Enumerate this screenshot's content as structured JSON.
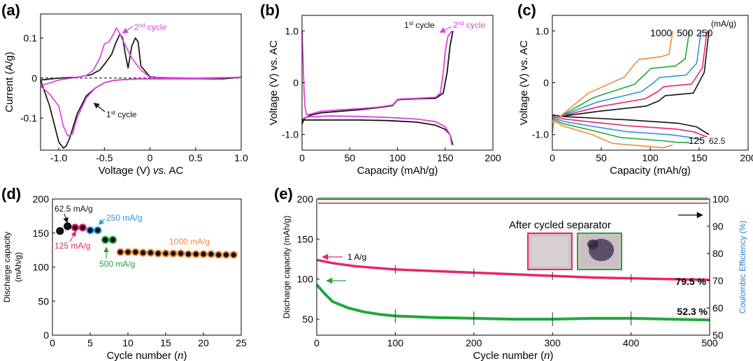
{
  "colors": {
    "black": "#111111",
    "magenta": "#e040e0",
    "pink": "#e8246e",
    "green": "#22a63a",
    "blue": "#2a95e0",
    "orange": "#f08a3c",
    "red": "#d81c3c",
    "cyan": "#2a7fd0"
  },
  "chart_data": [
    {
      "panel": "(a)",
      "type": "line",
      "xlabel_parts": [
        "Voltage (V) ",
        "vs.",
        " AC"
      ],
      "ylabel": "Current (A/g)",
      "xlim": [
        -1.2,
        1.0
      ],
      "ylim": [
        -0.18,
        0.16
      ],
      "xticks": [
        -1.0,
        -0.5,
        0,
        0.5,
        1.0
      ],
      "xtick_labels": [
        "-1.0",
        "-0.5",
        "0",
        "0.5",
        "1.0"
      ],
      "yticks": [
        -0.1,
        0,
        0.1
      ],
      "ytick_labels": [
        "-0.1",
        "0",
        "0.1"
      ],
      "series": [
        {
          "name": "1st cycle",
          "color": "#111111",
          "x": [
            -1.2,
            -1.1,
            -1.0,
            -0.95,
            -0.92,
            -0.88,
            -0.8,
            -0.7,
            -0.6,
            -0.5,
            -0.4,
            -0.3,
            -0.2,
            -0.1,
            0,
            0.2,
            0.4,
            0.6,
            0.8,
            1.0,
            0.8,
            0.6,
            0.4,
            0.2,
            0,
            -0.1,
            -0.13,
            -0.16,
            -0.2,
            -0.24,
            -0.27,
            -0.3,
            -0.33,
            -0.35,
            -0.38,
            -0.42,
            -0.48,
            -0.55,
            -0.65,
            -0.8,
            -1.0,
            -1.2
          ],
          "y": [
            -0.005,
            -0.07,
            -0.16,
            -0.175,
            -0.17,
            -0.15,
            -0.09,
            -0.045,
            -0.025,
            -0.012,
            -0.006,
            -0.004,
            -0.003,
            -0.002,
            -0.002,
            -0.002,
            -0.002,
            -0.002,
            -0.002,
            0.002,
            0.0,
            0.0,
            0.0,
            0.0,
            0.003,
            0.03,
            0.09,
            0.1,
            0.08,
            0.025,
            0.06,
            0.1,
            0.11,
            0.1,
            0.085,
            0.06,
            0.04,
            0.02,
            0.008,
            0.002,
            0.0,
            -0.005
          ]
        },
        {
          "name": "2nd cycle",
          "color": "#e040e0",
          "x": [
            -1.2,
            -1.1,
            -1.0,
            -0.95,
            -0.9,
            -0.85,
            -0.8,
            -0.7,
            -0.6,
            -0.5,
            -0.4,
            -0.3,
            -0.2,
            -0.1,
            0,
            0.5,
            1.0,
            0.5,
            0,
            -0.1,
            -0.2,
            -0.3,
            -0.34,
            -0.37,
            -0.4,
            -0.45,
            -0.5,
            -0.55,
            -0.62,
            -0.7,
            -0.8,
            -1.0,
            -1.2
          ],
          "y": [
            -0.02,
            -0.04,
            -0.07,
            -0.12,
            -0.145,
            -0.14,
            -0.1,
            -0.05,
            -0.025,
            -0.012,
            -0.006,
            -0.004,
            -0.003,
            -0.002,
            -0.002,
            -0.002,
            0.002,
            0.0,
            0.002,
            0.02,
            0.05,
            0.095,
            0.115,
            0.125,
            0.11,
            0.09,
            0.085,
            0.05,
            0.02,
            0.006,
            0.002,
            -0.005,
            -0.02
          ]
        }
      ],
      "annotations": [
        {
          "text": "2",
          "sup": "nd",
          "rest": " cycle",
          "color": "#e040e0"
        },
        {
          "text": "1",
          "sup": "st",
          "rest": " cycle",
          "color": "#111111"
        }
      ]
    },
    {
      "panel": "(b)",
      "type": "line",
      "xlabel": "Capacity (mAh/g)",
      "ylabel": "Voltage (V) vs. AC",
      "xlim": [
        0,
        200
      ],
      "ylim": [
        -1.3,
        1.3
      ],
      "xticks": [
        0,
        50,
        100,
        150,
        200
      ],
      "xtick_labels": [
        "0",
        "50",
        "100",
        "150",
        "200"
      ],
      "yticks": [
        -1.0,
        0,
        1.0
      ],
      "ytick_labels": [
        "-1.0",
        "0",
        "1.0"
      ],
      "series": [
        {
          "name": "1st cycle charge",
          "color": "#111111",
          "x": [
            0,
            2,
            5,
            10,
            20,
            40,
            60,
            80,
            95,
            100,
            105,
            120,
            140,
            148,
            152,
            155,
            158
          ],
          "y": [
            -0.8,
            -0.7,
            -0.66,
            -0.62,
            -0.58,
            -0.55,
            -0.52,
            -0.48,
            -0.44,
            -0.33,
            -0.32,
            -0.31,
            -0.3,
            -0.2,
            0.2,
            0.7,
            1.0
          ]
        },
        {
          "name": "1st cycle discharge",
          "color": "#111111",
          "x": [
            0,
            10,
            30,
            60,
            90,
            120,
            140,
            150,
            155,
            158
          ],
          "y": [
            -0.72,
            -0.72,
            -0.72,
            -0.72,
            -0.73,
            -0.76,
            -0.82,
            -0.9,
            -1.0,
            -1.2
          ]
        },
        {
          "name": "2nd cycle charge",
          "color": "#e040e0",
          "x": [
            0,
            1,
            2,
            3,
            5,
            10,
            20,
            40,
            60,
            80,
            95,
            100,
            105,
            120,
            140,
            145,
            148,
            150,
            153,
            157
          ],
          "y": [
            1.0,
            0.5,
            -0.1,
            -0.45,
            -0.62,
            -0.6,
            -0.55,
            -0.52,
            -0.5,
            -0.47,
            -0.43,
            -0.32,
            -0.31,
            -0.3,
            -0.28,
            -0.2,
            0.2,
            0.6,
            0.9,
            1.0
          ]
        },
        {
          "name": "2nd cycle discharge",
          "color": "#e040e0",
          "x": [
            0,
            5,
            15,
            30,
            60,
            90,
            120,
            140,
            150,
            155,
            157
          ],
          "y": [
            -0.7,
            -0.66,
            -0.65,
            -0.64,
            -0.65,
            -0.67,
            -0.7,
            -0.75,
            -0.85,
            -1.0,
            -1.2
          ]
        }
      ],
      "annotations": [
        {
          "text": "1",
          "sup": "st",
          "rest": " cycle",
          "color": "#111111"
        },
        {
          "text": "2",
          "sup": "nd",
          "rest": " cycle",
          "color": "#e040e0"
        }
      ]
    },
    {
      "panel": "(c)",
      "type": "line",
      "xlabel": "Capacity (mAh/g)",
      "ylabel": "Voltage (V) vs. AC",
      "xlim": [
        0,
        200
      ],
      "ylim": [
        -1.3,
        1.3
      ],
      "xticks": [
        0,
        50,
        100,
        150,
        200
      ],
      "xtick_labels": [
        "0",
        "50",
        "100",
        "150",
        "200"
      ],
      "yticks": [
        -1.0,
        0,
        1.0
      ],
      "ytick_labels": [
        "-1.0",
        "0",
        "1.0"
      ],
      "unit_label": "(mA/g)",
      "series": [
        {
          "name": "62.5",
          "color": "#111111",
          "cap": 160
        },
        {
          "name": "125",
          "color": "#e8246e",
          "cap": 158
        },
        {
          "name": "250",
          "color": "#2a95e0",
          "cap": 152
        },
        {
          "name": "500",
          "color": "#22a63a",
          "cap": 140
        },
        {
          "name": "1000",
          "color": "#f08a3c",
          "cap": 123
        }
      ]
    },
    {
      "panel": "(d)",
      "type": "scatter",
      "xlabel_parts": [
        "Cycle number (",
        "n",
        ")"
      ],
      "ylabel_lines": [
        "Discharge capacity",
        "(mAh/g)"
      ],
      "xlim": [
        0,
        25
      ],
      "ylim": [
        0,
        200
      ],
      "xticks": [
        0,
        5,
        10,
        15,
        20,
        25
      ],
      "xtick_labels": [
        "0",
        "5",
        "10",
        "15",
        "20",
        "25"
      ],
      "yticks": [
        0,
        50,
        100,
        150,
        200
      ],
      "ytick_labels": [
        "0",
        "50",
        "100",
        "150",
        "200"
      ],
      "series": [
        {
          "name": "62.5 mA/g",
          "color": "#111111",
          "x": [
            1,
            2
          ],
          "y": [
            153,
            160
          ]
        },
        {
          "name": "125 mA/g",
          "color": "#e8246e",
          "x": [
            3,
            4
          ],
          "y": [
            158,
            158
          ]
        },
        {
          "name": "250 mA/g",
          "color": "#2a95e0",
          "x": [
            5,
            6
          ],
          "y": [
            154,
            154
          ]
        },
        {
          "name": "500 mA/g",
          "color": "#22a63a",
          "x": [
            7,
            8
          ],
          "y": [
            140,
            140
          ]
        },
        {
          "name": "1000 mA/g",
          "color": "#f08a3c",
          "x": [
            9,
            10,
            11,
            12,
            13,
            14,
            15,
            16,
            17,
            18,
            19,
            20,
            21,
            22,
            23,
            24
          ],
          "y": [
            122,
            122,
            122,
            121,
            121,
            120,
            120,
            120,
            120,
            119,
            119,
            119,
            119,
            118,
            118,
            118
          ]
        }
      ]
    },
    {
      "panel": "(e)",
      "type": "line",
      "xlabel_parts": [
        "Cycle number (",
        "n",
        ")"
      ],
      "ylabel": "Discharge capacity (mAh/g)",
      "ylabel_right": "Coulombic Efficiency (%)",
      "xlim": [
        0,
        500
      ],
      "ylim": [
        30,
        200
      ],
      "ylim_right": [
        50,
        100
      ],
      "xticks": [
        0,
        100,
        200,
        300,
        400,
        500
      ],
      "xtick_labels": [
        "0",
        "100",
        "200",
        "300",
        "400",
        "500"
      ],
      "yticks": [
        50,
        100,
        150,
        200
      ],
      "ytick_labels": [
        "50",
        "100",
        "150",
        "200"
      ],
      "yticks_right": [
        50,
        60,
        70,
        80,
        90,
        100
      ],
      "ytick_labels_right": [
        "50",
        "60",
        "70",
        "80",
        "90",
        "100"
      ],
      "rate_label": "1 A/g",
      "inset_title": "After cycled separator",
      "series": [
        {
          "name": "pink",
          "color": "#e8246e",
          "x": [
            0,
            20,
            50,
            100,
            150,
            200,
            250,
            300,
            350,
            400,
            450,
            500
          ],
          "y": [
            124,
            120,
            116,
            112,
            110,
            108,
            106,
            104,
            102,
            101,
            100,
            99
          ],
          "end_label": "79.5 %"
        },
        {
          "name": "green",
          "color": "#22a63a",
          "x": [
            0,
            10,
            20,
            40,
            60,
            80,
            100,
            150,
            200,
            250,
            300,
            350,
            400,
            450,
            500
          ],
          "y": [
            93,
            82,
            72,
            64,
            59,
            56,
            54,
            52,
            51,
            50,
            50,
            51,
            51,
            50,
            49
          ],
          "end_label": "52.3 %"
        }
      ],
      "efficiency": {
        "x": [
          0,
          500
        ],
        "y": [
          99,
          99
        ]
      }
    }
  ]
}
